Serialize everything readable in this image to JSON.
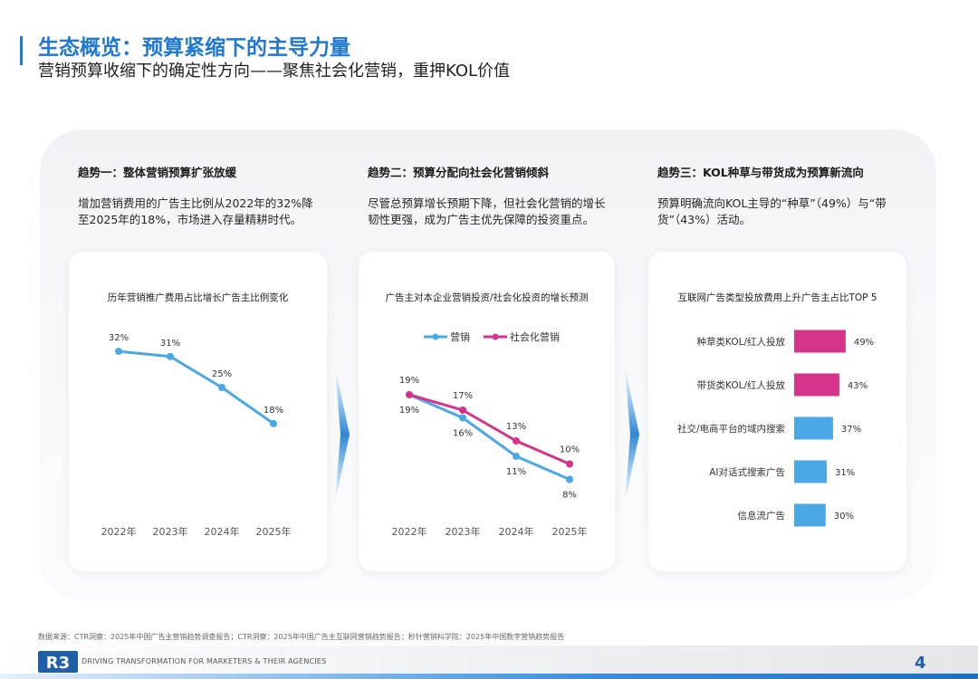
{
  "header": {
    "title": "生态概览：预算紧缩下的主导力量",
    "subtitle": "营销预算收缩下的确定性方向——聚焦社会化营销，重押KOL价值"
  },
  "trends": [
    {
      "title": "趋势一：整体营销预算扩张放缓",
      "description": "增加营销费用的广告主比例从2022年的32%降至2025年的18%，市场进入存量精耕时代。"
    },
    {
      "title": "趋势二：预算分配向社会化营销倾斜",
      "description": "尽管总预算增长预期下降，但社会化营销的增长韧性更强，成为广告主优先保障的投资重点。"
    },
    {
      "title": "趋势三：KOL种草与带货成为预算新流向",
      "description": "预算明确流向KOL主导的“种草”（49%）与“带货”（43%）活动。"
    }
  ],
  "chart_data": [
    {
      "type": "line",
      "title": "历年营销推广费用占比增长广告主比例变化",
      "x": [
        "2022年",
        "2023年",
        "2024年",
        "2025年"
      ],
      "series": [
        {
          "values": [
            32,
            31,
            25,
            18
          ],
          "labels": [
            "32%",
            "31%",
            "25%",
            "18%"
          ],
          "color": "#4aa8e6"
        }
      ],
      "unit": "%",
      "grid": false
    },
    {
      "type": "line",
      "title": "广告主对本企业营销投资/社会化投资的增长预测",
      "x": [
        "2022年",
        "2023年",
        "2024年",
        "2025年"
      ],
      "series": [
        {
          "name": "营销",
          "values": [
            19,
            16,
            11,
            8
          ],
          "labels": [
            "19%",
            "16%",
            "11%",
            "8%"
          ],
          "color": "#4aa8e6"
        },
        {
          "name": "社会化营销",
          "values": [
            19,
            17,
            13,
            10
          ],
          "labels": [
            "19%",
            "17%",
            "13%",
            "10%"
          ],
          "color": "#d6338a"
        }
      ],
      "legend": "top",
      "unit": "%",
      "grid": false
    },
    {
      "type": "bar",
      "orientation": "horizontal",
      "title": "互联网广告类型投放费用上升广告主占比TOP 5",
      "categories": [
        "种草类KOL/红人投放",
        "带货类KOL/红人投放",
        "社交/电商平台的域内搜索",
        "AI对话式搜索广告",
        "信息流广告"
      ],
      "values": [
        49,
        43,
        37,
        31,
        30
      ],
      "labels": [
        "49%",
        "43%",
        "37%",
        "31%",
        "30%"
      ],
      "colors": [
        "#d6338a",
        "#d6338a",
        "#4aa8e6",
        "#4aa8e6",
        "#4aa8e6"
      ],
      "unit": "%"
    }
  ],
  "footer": {
    "source": "数据来源：CTR洞察：2025年中国广告主营销趋势调查报告；CTR洞察：2025年中国广告主互联网营销趋势报告；秒针营销科学院：2025年中国数字营销趋势报告",
    "logo": "R3",
    "tagline": "DRIVING TRANSFORMATION FOR MARKETERS & THEIR AGENCIES",
    "page_number": "4"
  },
  "colors": {
    "accent": "#1f78d1",
    "blue_series": "#4aa8e6",
    "pink_series": "#d6338a"
  }
}
